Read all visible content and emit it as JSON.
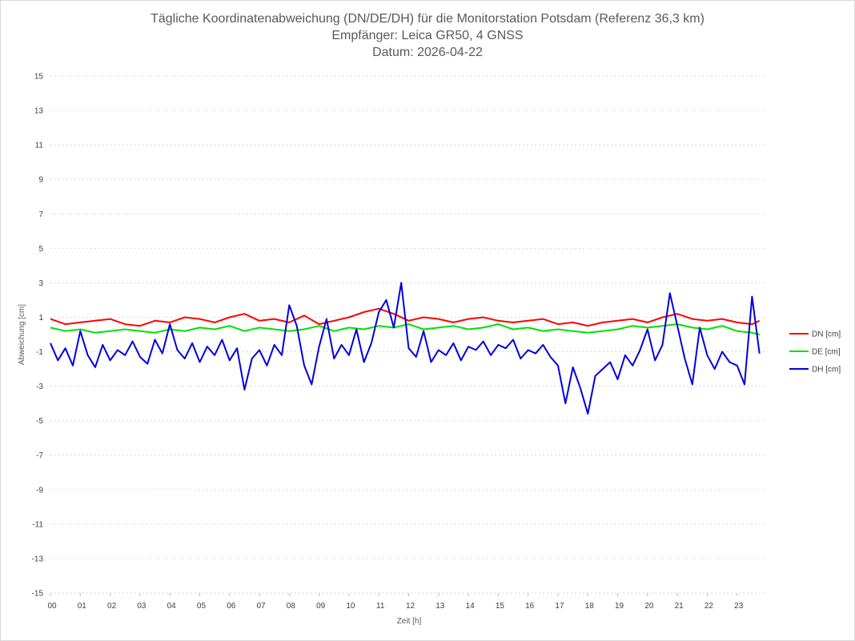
{
  "chart_data": {
    "type": "line",
    "title_lines": [
      "Tägliche Koordinatenabweichung (DN/DE/DH) für die Monitorstation Potsdam (Referenz 36,3 km)",
      "Empfänger: Leica GR50, 4 GNSS",
      "Datum: 2026-04-22"
    ],
    "xlabel": "Zeit [h]",
    "ylabel": "Abweichung [cm]",
    "xlim": [
      0,
      24
    ],
    "ylim": [
      -15,
      15
    ],
    "x_ticks": [
      "00",
      "01",
      "02",
      "03",
      "04",
      "05",
      "06",
      "07",
      "08",
      "09",
      "10",
      "11",
      "12",
      "13",
      "14",
      "15",
      "16",
      "17",
      "18",
      "19",
      "20",
      "21",
      "22",
      "23"
    ],
    "y_ticks": [
      15,
      13,
      11,
      9,
      7,
      5,
      3,
      1,
      -1,
      -3,
      -5,
      -7,
      -9,
      -11,
      -13,
      -15
    ],
    "y_tick_labels": [
      "15",
      "13",
      "11",
      "9",
      "7",
      "5",
      "3",
      "1",
      "-1",
      "-3",
      "-5",
      "-7",
      "-9",
      "-11",
      "-13",
      "-15"
    ],
    "grid": "horizontal dashed",
    "legend_position": "right",
    "series": [
      {
        "name": "DN [cm]",
        "color": "#ff0000",
        "x": [
          0,
          0.5,
          1,
          1.5,
          2,
          2.5,
          3,
          3.5,
          4,
          4.5,
          5,
          5.5,
          6,
          6.5,
          7,
          7.5,
          8,
          8.5,
          9,
          9.5,
          10,
          10.5,
          11,
          11.5,
          12,
          12.5,
          13,
          13.5,
          14,
          14.5,
          15,
          15.5,
          16,
          16.5,
          17,
          17.5,
          18,
          18.5,
          19,
          19.5,
          20,
          20.5,
          21,
          21.5,
          22,
          22.5,
          23,
          23.5,
          23.75
        ],
        "y": [
          0.9,
          0.6,
          0.7,
          0.8,
          0.9,
          0.6,
          0.5,
          0.8,
          0.7,
          1.0,
          0.9,
          0.7,
          1.0,
          1.2,
          0.8,
          0.9,
          0.7,
          1.1,
          0.6,
          0.8,
          1.0,
          1.3,
          1.5,
          1.2,
          0.8,
          1.0,
          0.9,
          0.7,
          0.9,
          1.0,
          0.8,
          0.7,
          0.8,
          0.9,
          0.6,
          0.7,
          0.5,
          0.7,
          0.8,
          0.9,
          0.7,
          1.0,
          1.2,
          0.9,
          0.8,
          0.9,
          0.7,
          0.6,
          0.8
        ]
      },
      {
        "name": "DE [cm]",
        "color": "#00e000",
        "x": [
          0,
          0.5,
          1,
          1.5,
          2,
          2.5,
          3,
          3.5,
          4,
          4.5,
          5,
          5.5,
          6,
          6.5,
          7,
          7.5,
          8,
          8.5,
          9,
          9.5,
          10,
          10.5,
          11,
          11.5,
          12,
          12.5,
          13,
          13.5,
          14,
          14.5,
          15,
          15.5,
          16,
          16.5,
          17,
          17.5,
          18,
          18.5,
          19,
          19.5,
          20,
          20.5,
          21,
          21.5,
          22,
          22.5,
          23,
          23.5,
          23.75
        ],
        "y": [
          0.4,
          0.2,
          0.3,
          0.1,
          0.2,
          0.3,
          0.2,
          0.1,
          0.3,
          0.2,
          0.4,
          0.3,
          0.5,
          0.2,
          0.4,
          0.3,
          0.2,
          0.3,
          0.5,
          0.2,
          0.4,
          0.3,
          0.5,
          0.4,
          0.6,
          0.3,
          0.4,
          0.5,
          0.3,
          0.4,
          0.6,
          0.3,
          0.4,
          0.2,
          0.3,
          0.2,
          0.1,
          0.2,
          0.3,
          0.5,
          0.4,
          0.5,
          0.6,
          0.4,
          0.3,
          0.5,
          0.2,
          0.1,
          0.0
        ]
      },
      {
        "name": "DH [cm]",
        "color": "#0000dd",
        "x": [
          0,
          0.25,
          0.5,
          0.75,
          1,
          1.25,
          1.5,
          1.75,
          2,
          2.25,
          2.5,
          2.75,
          3,
          3.25,
          3.5,
          3.75,
          4,
          4.25,
          4.5,
          4.75,
          5,
          5.25,
          5.5,
          5.75,
          6,
          6.25,
          6.5,
          6.75,
          7,
          7.25,
          7.5,
          7.75,
          8,
          8.25,
          8.5,
          8.75,
          9,
          9.25,
          9.5,
          9.75,
          10,
          10.25,
          10.5,
          10.75,
          11,
          11.25,
          11.5,
          11.75,
          12,
          12.25,
          12.5,
          12.75,
          13,
          13.25,
          13.5,
          13.75,
          14,
          14.25,
          14.5,
          14.75,
          15,
          15.25,
          15.5,
          15.75,
          16,
          16.25,
          16.5,
          16.75,
          17,
          17.25,
          17.5,
          17.75,
          18,
          18.25,
          18.5,
          18.75,
          19,
          19.25,
          19.5,
          19.75,
          20,
          20.25,
          20.5,
          20.75,
          21,
          21.25,
          21.5,
          21.75,
          22,
          22.25,
          22.5,
          22.75,
          23,
          23.25,
          23.5,
          23.75
        ],
        "y": [
          -0.5,
          -1.5,
          -0.8,
          -1.8,
          0.2,
          -1.2,
          -1.9,
          -0.6,
          -1.5,
          -0.9,
          -1.2,
          -0.4,
          -1.3,
          -1.7,
          -0.3,
          -1.1,
          0.6,
          -0.9,
          -1.4,
          -0.5,
          -1.6,
          -0.7,
          -1.2,
          -0.3,
          -1.5,
          -0.8,
          -3.2,
          -1.4,
          -0.9,
          -1.8,
          -0.6,
          -1.2,
          1.7,
          0.5,
          -1.8,
          -2.9,
          -0.7,
          0.9,
          -1.4,
          -0.6,
          -1.2,
          0.3,
          -1.6,
          -0.5,
          1.3,
          2.0,
          0.4,
          3.0,
          -0.8,
          -1.3,
          0.2,
          -1.6,
          -0.9,
          -1.2,
          -0.5,
          -1.5,
          -0.7,
          -0.9,
          -0.4,
          -1.2,
          -0.6,
          -0.8,
          -0.3,
          -1.4,
          -0.9,
          -1.1,
          -0.6,
          -1.3,
          -1.8,
          -4.0,
          -1.9,
          -3.1,
          -4.6,
          -2.4,
          -2.0,
          -1.6,
          -2.6,
          -1.2,
          -1.8,
          -0.9,
          0.3,
          -1.5,
          -0.6,
          2.4,
          0.5,
          -1.4,
          -2.9,
          0.4,
          -1.2,
          -2.0,
          -1.0,
          -1.6,
          -1.8,
          -2.9,
          2.2,
          -1.1
        ]
      }
    ]
  }
}
